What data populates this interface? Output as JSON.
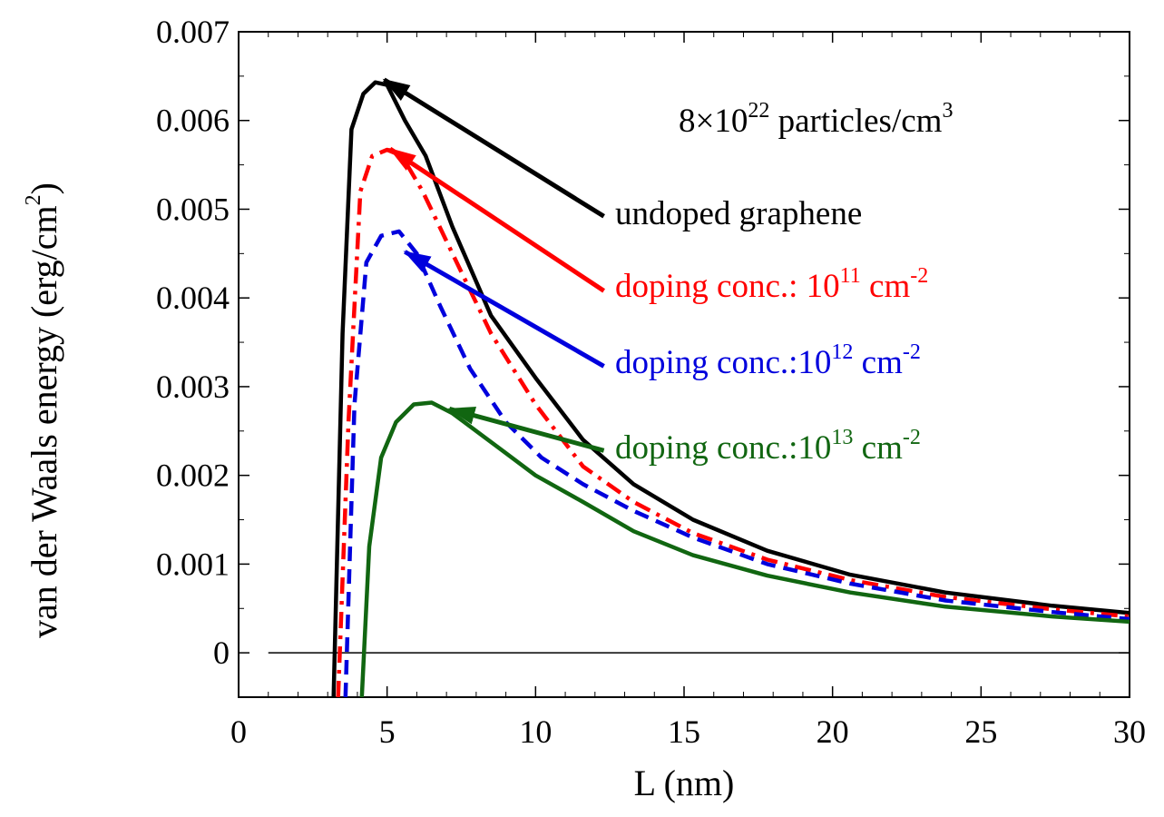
{
  "chart_data": {
    "type": "line",
    "title": "",
    "xlabel": "L (nm)",
    "ylabel_main": "van der Waals energy (erg/cm",
    "ylabel_sup": "2",
    "ylabel_close": ")",
    "xlim": [
      0,
      30
    ],
    "ylim": [
      -0.0005,
      0.007
    ],
    "x_ticks": [
      0,
      5,
      10,
      15,
      20,
      25,
      30
    ],
    "x_tick_labels": [
      "0",
      "5",
      "10",
      "15",
      "20",
      "25",
      "30"
    ],
    "y_ticks": [
      0,
      0.001,
      0.002,
      0.003,
      0.004,
      0.005,
      0.006,
      0.007
    ],
    "y_tick_labels": [
      "0",
      "0.001",
      "0.002",
      "0.003",
      "0.004",
      "0.005",
      "0.006",
      "0.007"
    ],
    "grid": false,
    "zero_line": {
      "y": 0,
      "x_from": 1,
      "x_to": 30
    },
    "density_annotation": {
      "text_main": "8×10",
      "exp1": "22",
      "text_mid": " particles/cm",
      "exp2": "3"
    },
    "series": [
      {
        "name": "undoped graphene",
        "label_main": "undoped graphene",
        "label_exp": "",
        "color": "#000000",
        "dash": "solid",
        "x": [
          3.2,
          3.5,
          3.8,
          4.2,
          4.6,
          5.0,
          5.6,
          6.3,
          7.2,
          8.5,
          10.0,
          11.6,
          13.3,
          15.3,
          17.8,
          20.6,
          23.8,
          27.4,
          30.0
        ],
        "y": [
          -0.0005,
          0.0036,
          0.0059,
          0.0063,
          0.00643,
          0.0064,
          0.006,
          0.0056,
          0.0048,
          0.0038,
          0.0031,
          0.0024,
          0.0019,
          0.0015,
          0.00115,
          0.00088,
          0.00068,
          0.00053,
          0.00045
        ],
        "arrow_tip": [
          4.9,
          0.00646
        ],
        "arrow_tail": [
          12.3,
          0.00492
        ]
      },
      {
        "name": "doping conc.: 10^11 cm^-2",
        "label_main": "doping conc.: 10",
        "label_exp": "11",
        "label_unit": " cm",
        "label_exp2": "-2",
        "color": "#ff0000",
        "dash": "dashdot",
        "x": [
          3.35,
          3.7,
          4.1,
          4.5,
          5.0,
          5.5,
          6.2,
          7.2,
          8.5,
          10.0,
          11.6,
          13.3,
          15.3,
          17.8,
          20.6,
          23.8,
          27.4,
          30.0
        ],
        "y": [
          -0.0005,
          0.0026,
          0.0052,
          0.0056,
          0.00567,
          0.0056,
          0.0052,
          0.0045,
          0.0036,
          0.0028,
          0.0021,
          0.0017,
          0.00135,
          0.00105,
          0.00082,
          0.00063,
          0.00049,
          0.00041
        ],
        "arrow_tip": [
          5.1,
          0.00568
        ],
        "arrow_tail": [
          12.3,
          0.00408
        ]
      },
      {
        "name": "doping conc.: 10^12 cm^-2",
        "label_main": "doping conc.:10",
        "label_exp": "12",
        "label_unit": " cm",
        "label_exp2": "-2",
        "color": "#0000dd",
        "dash": "dashed",
        "x": [
          3.6,
          3.9,
          4.3,
          4.8,
          5.4,
          6.0,
          6.8,
          7.8,
          9.0,
          10.2,
          11.6,
          13.3,
          15.3,
          17.8,
          20.6,
          23.8,
          27.4,
          30.0
        ],
        "y": [
          -0.0005,
          0.0028,
          0.0044,
          0.0047,
          0.00475,
          0.0045,
          0.0039,
          0.0032,
          0.0026,
          0.0022,
          0.0019,
          0.0016,
          0.0013,
          0.001,
          0.00078,
          0.00059,
          0.00046,
          0.00038
        ],
        "arrow_tip": [
          5.6,
          0.00452
        ],
        "arrow_tail": [
          12.3,
          0.00323
        ]
      },
      {
        "name": "doping conc.: 10^13 cm^-2",
        "label_main": "doping conc.:10",
        "label_exp": "13",
        "label_unit": " cm",
        "label_exp2": "-2",
        "color": "#116611",
        "dash": "solid",
        "x": [
          4.15,
          4.4,
          4.8,
          5.3,
          5.9,
          6.5,
          7.2,
          8.0,
          9.0,
          10.0,
          11.6,
          13.3,
          15.3,
          17.8,
          20.6,
          23.8,
          27.4,
          30.0
        ],
        "y": [
          -0.0005,
          0.0012,
          0.0022,
          0.0026,
          0.0028,
          0.00282,
          0.0027,
          0.0025,
          0.00225,
          0.002,
          0.0017,
          0.00137,
          0.0011,
          0.00087,
          0.00068,
          0.00052,
          0.00041,
          0.00035
        ],
        "arrow_tip": [
          7.1,
          0.00275
        ],
        "arrow_tail": [
          12.3,
          0.00228
        ]
      }
    ]
  }
}
